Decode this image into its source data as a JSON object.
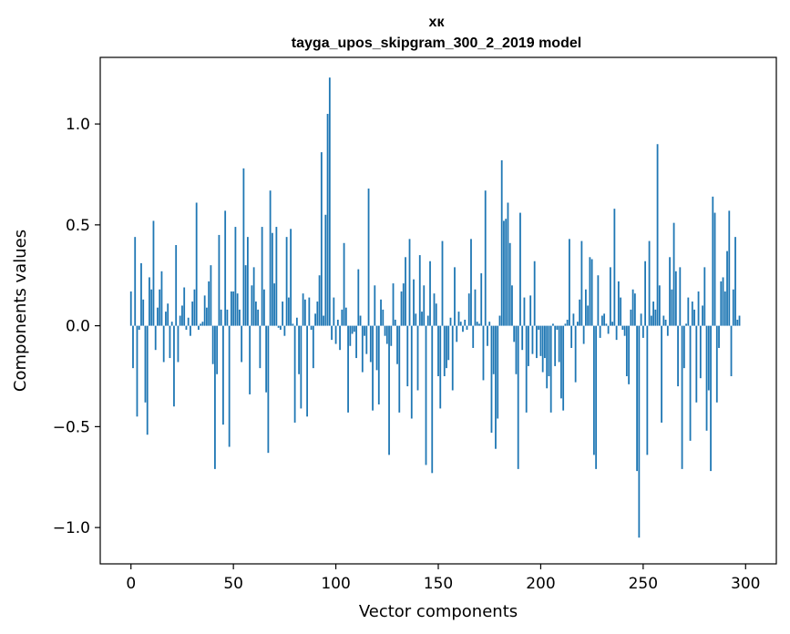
{
  "chart_data": {
    "type": "bar",
    "title": "хк",
    "subtitle": "tayga_upos_skipgram_300_2_2019 model",
    "xlabel": "Vector components",
    "ylabel": "Components values",
    "xlim": [
      -15,
      315
    ],
    "ylim": [
      -1.18,
      1.33
    ],
    "xticks": [
      0,
      50,
      100,
      150,
      200,
      250,
      300
    ],
    "xtick_labels": [
      "0",
      "50",
      "100",
      "150",
      "200",
      "250",
      "300"
    ],
    "yticks": [
      -1.0,
      -0.5,
      0.0,
      0.5,
      1.0
    ],
    "ytick_labels": [
      "−1.0",
      "−0.5",
      "0.0",
      "0.5",
      "1.0"
    ],
    "color": "#1f77b4",
    "values": [
      0.17,
      -0.21,
      0.44,
      -0.45,
      -0.02,
      0.31,
      0.13,
      -0.38,
      -0.54,
      0.24,
      0.18,
      0.52,
      -0.12,
      0.09,
      0.18,
      0.27,
      -0.18,
      0.07,
      0.11,
      -0.16,
      0.02,
      -0.4,
      0.4,
      -0.18,
      0.05,
      0.1,
      0.19,
      -0.02,
      0.04,
      -0.05,
      0.12,
      0.18,
      0.61,
      -0.02,
      0.01,
      0.02,
      0.15,
      0.09,
      0.22,
      0.3,
      -0.19,
      -0.71,
      -0.24,
      0.45,
      0.08,
      -0.49,
      0.57,
      0.08,
      -0.6,
      0.17,
      0.17,
      0.49,
      0.16,
      0.08,
      -0.18,
      0.78,
      0.3,
      0.44,
      -0.34,
      0.2,
      0.29,
      0.12,
      0.08,
      -0.21,
      0.49,
      0.18,
      -0.33,
      -0.63,
      0.67,
      0.46,
      0.21,
      0.49,
      -0.01,
      -0.02,
      0.12,
      -0.05,
      0.44,
      0.14,
      0.48,
      0.01,
      -0.48,
      0.04,
      -0.24,
      -0.41,
      0.16,
      0.13,
      -0.45,
      0.14,
      -0.02,
      -0.21,
      0.06,
      0.12,
      0.25,
      0.86,
      0.05,
      0.55,
      1.05,
      1.23,
      -0.07,
      0.14,
      -0.09,
      0.03,
      -0.12,
      0.08,
      0.41,
      0.09,
      -0.43,
      -0.1,
      -0.04,
      -0.03,
      -0.16,
      0.28,
      0.05,
      -0.23,
      -0.05,
      -0.14,
      0.68,
      -0.18,
      -0.42,
      0.2,
      -0.22,
      -0.39,
      0.13,
      0.08,
      -0.05,
      -0.09,
      -0.64,
      -0.1,
      0.21,
      0.03,
      -0.19,
      -0.43,
      0.17,
      0.21,
      0.34,
      -0.3,
      0.43,
      -0.46,
      0.23,
      0.06,
      -0.32,
      0.35,
      0.07,
      0.2,
      -0.69,
      0.05,
      0.32,
      -0.73,
      0.16,
      0.11,
      -0.25,
      -0.41,
      0.42,
      -0.25,
      -0.21,
      -0.17,
      0.04,
      -0.32,
      0.29,
      -0.08,
      0.07,
      0.02,
      -0.03,
      0.03,
      -0.02,
      0.16,
      0.43,
      -0.11,
      0.18,
      0.02,
      0.01,
      0.26,
      -0.27,
      0.67,
      -0.1,
      0.02,
      -0.53,
      -0.24,
      -0.61,
      -0.46,
      0.05,
      0.82,
      0.52,
      0.53,
      0.61,
      0.41,
      0.2,
      -0.08,
      -0.24,
      -0.71,
      0.56,
      -0.12,
      0.14,
      -0.43,
      -0.2,
      0.15,
      -0.14,
      0.32,
      -0.16,
      -0.02,
      -0.15,
      -0.23,
      -0.16,
      -0.31,
      -0.25,
      -0.43,
      0.01,
      -0.2,
      -0.02,
      -0.18,
      -0.36,
      -0.42,
      0.01,
      0.03,
      0.43,
      -0.11,
      0.06,
      -0.28,
      0.02,
      0.13,
      0.42,
      -0.09,
      0.18,
      0.1,
      0.34,
      0.33,
      -0.64,
      -0.71,
      0.25,
      -0.06,
      0.05,
      0.06,
      0.01,
      -0.04,
      0.29,
      0.02,
      0.58,
      -0.07,
      0.22,
      0.14,
      -0.02,
      -0.05,
      -0.25,
      -0.29,
      0.08,
      0.18,
      0.16,
      -0.72,
      -1.05,
      0.06,
      -0.06,
      0.32,
      -0.64,
      0.42,
      0.05,
      0.12,
      0.08,
      0.9,
      0.2,
      -0.48,
      0.05,
      0.03,
      -0.05,
      0.34,
      0.18,
      0.51,
      0.27,
      -0.3,
      0.29,
      -0.71,
      -0.21,
      0.01,
      0.14,
      -0.57,
      0.12,
      0.08,
      -0.38,
      0.17,
      -0.26,
      0.1,
      0.29,
      -0.52,
      -0.32,
      -0.72,
      0.64,
      0.56,
      -0.38,
      -0.11,
      0.22,
      0.24,
      0.17,
      0.37,
      0.57,
      -0.25,
      0.18,
      0.44,
      0.03,
      0.05
    ]
  }
}
